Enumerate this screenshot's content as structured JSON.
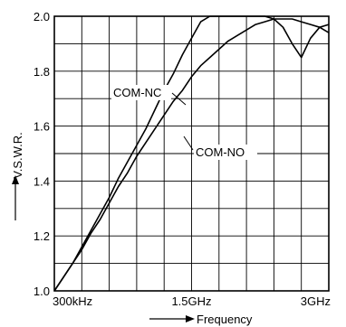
{
  "chart_data": {
    "type": "line",
    "title": "",
    "xlabel": "Frequency",
    "ylabel": "V.S.W.R.",
    "x_tick_labels": [
      "300kHz",
      "1.5GHz",
      "3GHz"
    ],
    "xlim": [
      0,
      3
    ],
    "ylim": [
      1.0,
      2.0
    ],
    "y_ticks": [
      1.0,
      1.2,
      1.4,
      1.6,
      1.8,
      2.0
    ],
    "y_tick_labels": [
      "1.0",
      "1.2",
      "1.4",
      "1.6",
      "1.8",
      "2.0"
    ],
    "grid": true,
    "series": [
      {
        "name": "COM-NC",
        "x": [
          0,
          0.1,
          0.2,
          0.3,
          0.4,
          0.5,
          0.6,
          0.7,
          0.8,
          0.9,
          1.0,
          1.1,
          1.2,
          1.3,
          1.4,
          1.5,
          1.6,
          1.7,
          1.8,
          1.9,
          2.0,
          2.1,
          2.2,
          2.3,
          2.4,
          2.5,
          2.6,
          2.7,
          2.8,
          2.9,
          3.0
        ],
        "values": [
          1.0,
          1.05,
          1.1,
          1.16,
          1.22,
          1.28,
          1.34,
          1.41,
          1.47,
          1.53,
          1.59,
          1.66,
          1.73,
          1.79,
          1.86,
          1.92,
          1.98,
          2.0,
          2.0,
          2.0,
          2.0,
          2.0,
          2.0,
          2.0,
          1.99,
          1.96,
          1.9,
          1.85,
          1.92,
          1.96,
          1.94
        ]
      },
      {
        "name": "COM-NO",
        "x": [
          0,
          0.1,
          0.2,
          0.3,
          0.4,
          0.5,
          0.6,
          0.7,
          0.8,
          0.9,
          1.0,
          1.1,
          1.2,
          1.3,
          1.4,
          1.5,
          1.6,
          1.7,
          1.8,
          1.9,
          2.0,
          2.1,
          2.2,
          2.3,
          2.4,
          2.5,
          2.6,
          2.7,
          2.8,
          2.9,
          3.0
        ],
        "values": [
          1.0,
          1.05,
          1.1,
          1.15,
          1.21,
          1.26,
          1.32,
          1.38,
          1.43,
          1.49,
          1.54,
          1.59,
          1.64,
          1.69,
          1.73,
          1.78,
          1.82,
          1.85,
          1.88,
          1.91,
          1.93,
          1.95,
          1.97,
          1.98,
          1.99,
          1.99,
          1.99,
          1.98,
          1.97,
          1.96,
          1.97
        ]
      }
    ]
  }
}
